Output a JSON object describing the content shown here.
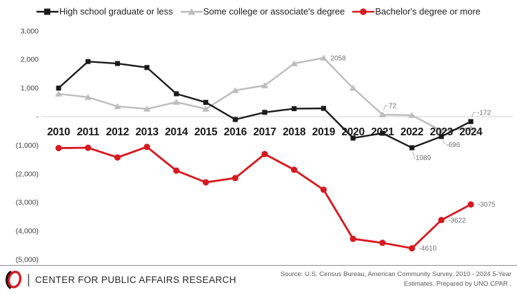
{
  "chart_data": {
    "type": "line",
    "title": "",
    "xlabel": "",
    "ylabel": "",
    "x": [
      2010,
      2011,
      2012,
      2013,
      2014,
      2015,
      2016,
      2017,
      2018,
      2019,
      2020,
      2021,
      2022,
      2023,
      2024
    ],
    "series": [
      {
        "id": "high-school",
        "name": "High school graduate or less",
        "color": "#1a1a1a",
        "marker": "square",
        "values": [
          1000,
          1930,
          1860,
          1720,
          800,
          500,
          -100,
          150,
          280,
          290,
          -750,
          -580,
          -1089,
          -696,
          -172
        ]
      },
      {
        "id": "some-college",
        "name": "Some college or associate's degree",
        "color": "#bcbcbc",
        "marker": "triangle",
        "values": [
          800,
          680,
          360,
          270,
          510,
          270,
          920,
          1090,
          1860,
          2058,
          1000,
          72,
          50,
          -500,
          -400
        ]
      },
      {
        "id": "bachelors",
        "name": "Bachelor's degree or more",
        "color": "#d71920",
        "marker": "circle",
        "values": [
          -1100,
          -1090,
          -1430,
          -1060,
          -1890,
          -2300,
          -2150,
          -1310,
          -1860,
          -2560,
          -4280,
          -4420,
          -4610,
          -3622,
          -3075
        ]
      }
    ],
    "ylim": [
      -5000,
      3000
    ],
    "yticks": [
      [
        3000,
        "3,000"
      ],
      [
        2000,
        "2,000"
      ],
      [
        1000,
        "1,000"
      ],
      [
        0,
        "-"
      ],
      [
        -1000,
        "(1,000)"
      ],
      [
        -2000,
        "(2,000)"
      ],
      [
        -3000,
        "(3,000)"
      ],
      [
        -4000,
        "(4,000)"
      ],
      [
        -5000,
        "(5,000)"
      ]
    ],
    "grid": "zero-line-only",
    "legend_position": "top-center",
    "data_labels": [
      {
        "series": 0,
        "year": 2022,
        "text": "-1089",
        "placement": "below"
      },
      {
        "series": 0,
        "year": 2023,
        "text": "-696",
        "placement": "below-right"
      },
      {
        "series": 0,
        "year": 2024,
        "text": "-172",
        "placement": "above-right"
      },
      {
        "series": 1,
        "year": 2019,
        "text": "2058",
        "placement": "right"
      },
      {
        "series": 1,
        "year": 2021,
        "text": "72",
        "placement": "above-right"
      },
      {
        "series": 2,
        "year": 2022,
        "text": "-4610",
        "placement": "right"
      },
      {
        "series": 2,
        "year": 2023,
        "text": "-3622",
        "placement": "right"
      },
      {
        "series": 2,
        "year": 2024,
        "text": "-3075",
        "placement": "right"
      }
    ]
  },
  "footer": {
    "separator": "|",
    "org": "CENTER FOR PUBLIC AFFAIRS RESEARCH",
    "source_line1": "Source: U.S. Census Bureau, American Community Survey, 2010 - 2024 5-Year",
    "source_line2": "Estimates. Prepared by UNO CPAR .",
    "logo_red": "#d71920",
    "logo_black": "#111111"
  }
}
